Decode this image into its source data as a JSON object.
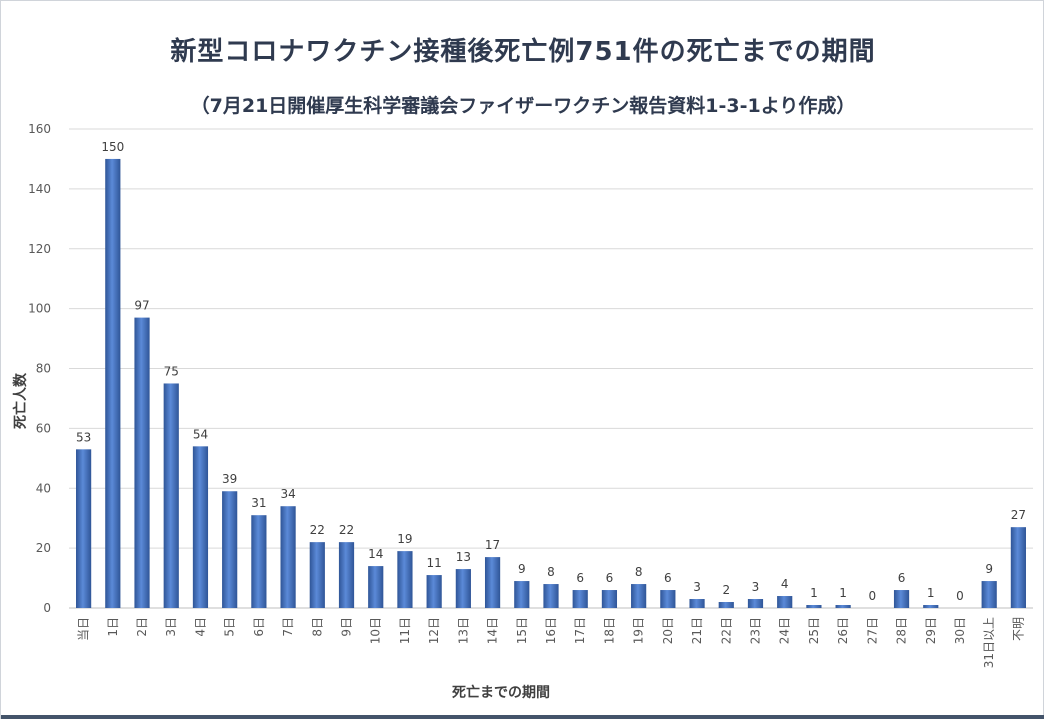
{
  "chart_data": {
    "type": "bar",
    "title": "新型コロナワクチン接種後死亡例751件の死亡までの期間",
    "subtitle": "（7月21日開催厚生科学審議会ファイザーワクチン報告資料1-3-1より作成）",
    "xlabel": "死亡までの期間",
    "ylabel": "死亡人数",
    "ylim": [
      0,
      160
    ],
    "yticks": [
      0,
      20,
      40,
      60,
      80,
      100,
      120,
      140,
      160
    ],
    "grid": true,
    "legend": "none",
    "categories": [
      "当日",
      "1日",
      "2日",
      "3日",
      "4日",
      "5日",
      "6日",
      "7日",
      "8日",
      "9日",
      "10日",
      "11日",
      "12日",
      "13日",
      "14日",
      "15日",
      "16日",
      "17日",
      "18日",
      "19日",
      "20日",
      "21日",
      "22日",
      "23日",
      "24日",
      "25日",
      "26日",
      "27日",
      "28日",
      "29日",
      "30日",
      "31日以上",
      "不明"
    ],
    "values": [
      53,
      150,
      97,
      75,
      54,
      39,
      31,
      34,
      22,
      22,
      14,
      19,
      11,
      13,
      17,
      9,
      8,
      6,
      6,
      8,
      6,
      3,
      2,
      3,
      4,
      1,
      1,
      0,
      6,
      1,
      0,
      9,
      27
    ],
    "bar_color": "#4472c4"
  }
}
